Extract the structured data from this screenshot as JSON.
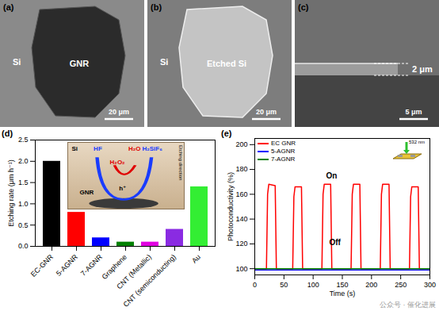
{
  "images": [
    {
      "panel": "(a)",
      "labels": [
        "Si",
        "GNR"
      ],
      "scale_bar": "20 μm"
    },
    {
      "panel": "(b)",
      "labels": [
        "Si",
        "Etched Si"
      ],
      "scale_bar": "20 μm"
    },
    {
      "panel": "(c)",
      "labels": [
        "2 μm"
      ],
      "scale_bar": "5 μm"
    }
  ],
  "chart_data": [
    {
      "type": "bar",
      "panel": "(d)",
      "categories": [
        "EC-GNR",
        "5-AGNR",
        "7-AGNR",
        "Graphene",
        "CNT (Metallic)",
        "CNT (semiconducting)",
        "Au"
      ],
      "values": [
        2.0,
        0.8,
        0.2,
        0.1,
        0.1,
        0.4,
        1.4
      ],
      "colors": [
        "#000000",
        "#ff0000",
        "#0000ff",
        "#008000",
        "#e000e0",
        "#8a2be2",
        "#33ee33"
      ],
      "ylabel": "Etching rate (μm h⁻¹)",
      "ylim": [
        0,
        2.5
      ],
      "yticks": [
        {
          "value": 0,
          "label": "0.0"
        },
        0.5,
        {
          "value": 1,
          "label": "1.0"
        },
        1.5,
        {
          "value": 2,
          "label": "2.0"
        },
        2.5
      ],
      "annotations": [
        "HF",
        "H₂O₂",
        "H₂O",
        "H₂SiF₆",
        "Si",
        "GNR",
        "h⁺",
        "Etching direction"
      ]
    },
    {
      "type": "line",
      "panel": "(e)",
      "x": [
        0,
        20,
        22,
        24,
        35,
        37,
        65,
        67,
        69,
        80,
        82,
        115,
        117,
        119,
        130,
        132,
        165,
        167,
        169,
        180,
        182,
        215,
        217,
        219,
        230,
        232,
        265,
        267,
        269,
        280,
        282,
        300
      ],
      "series": [
        {
          "name": "EC GNR",
          "color": "#ff0000",
          "values": [
            100,
            100,
            160,
            168,
            167,
            100,
            100,
            158,
            166,
            166,
            100,
            100,
            160,
            168,
            168,
            100,
            100,
            160,
            168,
            168,
            100,
            100,
            160,
            168,
            168,
            100,
            100,
            158,
            166,
            166,
            100,
            100
          ]
        },
        {
          "name": "5-AGNR",
          "color": "#0000ff",
          "values": [
            99,
            99,
            99,
            99,
            99,
            99,
            99,
            99,
            99,
            99,
            99,
            99,
            99,
            99,
            99,
            99,
            99,
            99,
            99,
            99,
            99,
            99,
            99,
            99,
            99,
            99,
            99,
            99,
            99,
            99,
            99,
            99
          ]
        },
        {
          "name": "7-AGNR",
          "color": "#008000",
          "values": [
            100,
            100,
            100,
            100,
            100,
            100,
            100,
            100,
            100,
            100,
            100,
            100,
            100,
            100,
            100,
            100,
            100,
            100,
            100,
            100,
            100,
            100,
            100,
            100,
            100,
            100,
            100,
            100,
            100,
            100,
            100,
            100
          ]
        }
      ],
      "xlabel": "Time (s)",
      "ylabel": "Photoconductivity (%)",
      "xlim": [
        0,
        300
      ],
      "xticks": [
        0,
        50,
        100,
        150,
        200,
        250,
        300
      ],
      "ylim": [
        95,
        205
      ],
      "yticks": [
        100,
        120,
        140,
        160,
        180,
        200
      ],
      "legend": "top-left",
      "annotations": [
        "On",
        "Off",
        "532 nm"
      ]
    }
  ],
  "watermark": "公众号 · 催化进展"
}
